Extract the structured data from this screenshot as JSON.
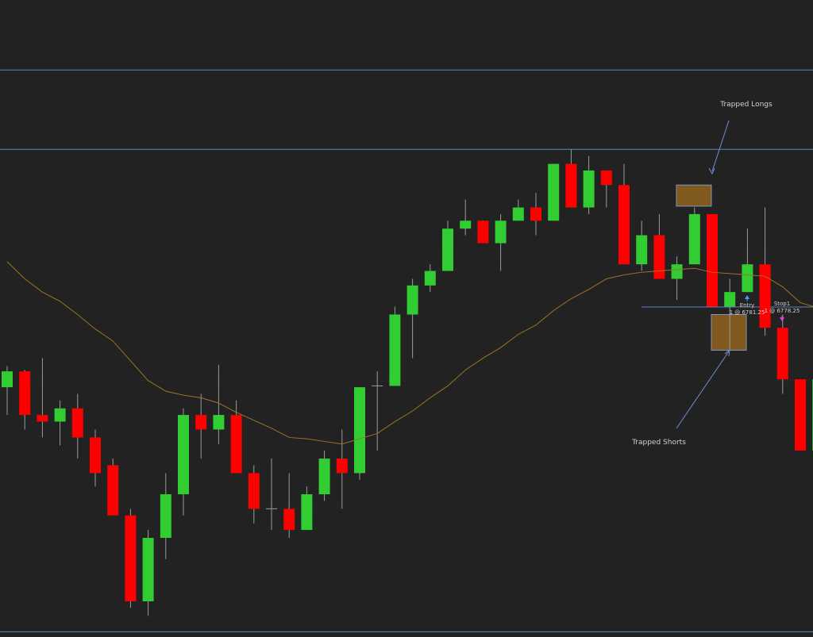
{
  "chart_data": {
    "type": "candlestick",
    "ylim": [
      6717.5,
      6838
    ],
    "up_color": "#32cd32",
    "down_color": "#ff0000",
    "wick_color": "#9a9a9a",
    "ma_color": "#9a7426",
    "level_color": "#5f7fc4",
    "zone_color": "#7f5a1c",
    "open": [
      6764.75,
      6767.75,
      6759.5,
      6758.25,
      6760.75,
      6755.25,
      6750,
      6740.5,
      6724.25,
      6736.25,
      6744.5,
      6759.5,
      6756.75,
      6759.5,
      6748.5,
      6741.75,
      6741.75,
      6737.75,
      6744.5,
      6751.25,
      6748.5,
      6765,
      6765,
      6778.5,
      6784,
      6786.75,
      6794.75,
      6796.25,
      6792,
      6796.25,
      6798.75,
      6796.25,
      6807,
      6798.75,
      6805.75,
      6803,
      6788,
      6793.5,
      6785.25,
      6788,
      6797.5,
      6780,
      6782.75,
      6788,
      6776,
      6766.25,
      6752.75
    ],
    "high": [
      6768.75,
      6768,
      6770.25,
      6762.25,
      6763.5,
      6756.75,
      6751.25,
      6741.75,
      6737.75,
      6748.5,
      6760.75,
      6763.5,
      6769,
      6762.25,
      6750,
      6751.25,
      6748.5,
      6746,
      6752.75,
      6756.75,
      6764.75,
      6767.75,
      6780,
      6785.25,
      6788,
      6796.25,
      6800.25,
      6796.25,
      6797.5,
      6800.25,
      6801.5,
      6807,
      6809.75,
      6808.5,
      6805.75,
      6807,
      6796.25,
      6797.5,
      6789.5,
      6798.75,
      6797.5,
      6785.25,
      6794.75,
      6798.75,
      6778.5,
      6766.25,
      6766.25
    ],
    "low": [
      6759.5,
      6756.75,
      6755.25,
      6753.75,
      6751.25,
      6746,
      6740.5,
      6723,
      6721.5,
      6732.25,
      6740.5,
      6751.25,
      6754,
      6748.5,
      6739,
      6737.75,
      6736.25,
      6737.75,
      6743.25,
      6741.75,
      6747.25,
      6752.75,
      6765,
      6770.25,
      6782.75,
      6786.75,
      6793.5,
      6792,
      6786.75,
      6796.25,
      6793.5,
      6796.25,
      6798.75,
      6797.5,
      6798.75,
      6788,
      6786.75,
      6785.25,
      6781.25,
      6788,
      6780,
      6772,
      6782.75,
      6774.5,
      6763.5,
      6752.75,
      6752.75
    ],
    "close": [
      6767.75,
      6759.5,
      6758.25,
      6760.75,
      6755.25,
      6748.5,
      6740.5,
      6724.25,
      6736.25,
      6744.5,
      6759.5,
      6756.75,
      6759.5,
      6748.5,
      6741.75,
      6741.75,
      6737.75,
      6744.5,
      6751.25,
      6748.5,
      6764.75,
      6765,
      6778.5,
      6784,
      6786.75,
      6794.75,
      6796.25,
      6792,
      6796.25,
      6798.75,
      6796.25,
      6807,
      6798.75,
      6805.75,
      6803,
      6788,
      6793.5,
      6785.25,
      6788,
      6797.5,
      6780,
      6782.75,
      6788,
      6776,
      6766.25,
      6752.75,
      6766.25
    ],
    "ma_values": [
      6788.5,
      6785.25,
      6782.75,
      6781,
      6778.5,
      6775.75,
      6773.5,
      6769.75,
      6766,
      6764,
      6763.25,
      6762.75,
      6761.75,
      6760,
      6758.5,
      6757,
      6755.25,
      6755,
      6754.5,
      6754,
      6755,
      6756,
      6758.25,
      6760.25,
      6762.75,
      6765,
      6768,
      6770.25,
      6772.25,
      6774.75,
      6776.5,
      6779.25,
      6781.5,
      6783.25,
      6785.25,
      6786,
      6786.5,
      6786.75,
      6787,
      6787.25,
      6786.5,
      6786.25,
      6786,
      6785.75,
      6783.75,
      6780.75,
      6779.75
    ],
    "levels": [
      6824.75,
      6809.75,
      6718.5
    ],
    "zones": [
      {
        "label": "Trapped Longs",
        "top": 6803,
        "bottom": 6799
      },
      {
        "label": "Trapped Shorts",
        "top": 6778.5,
        "bottom": 6771.75
      }
    ],
    "trades": [
      {
        "name": "Entry",
        "label": "1 @ 6781.25"
      },
      {
        "name": "Stop1",
        "label": "1 @ 6778.25"
      }
    ]
  }
}
